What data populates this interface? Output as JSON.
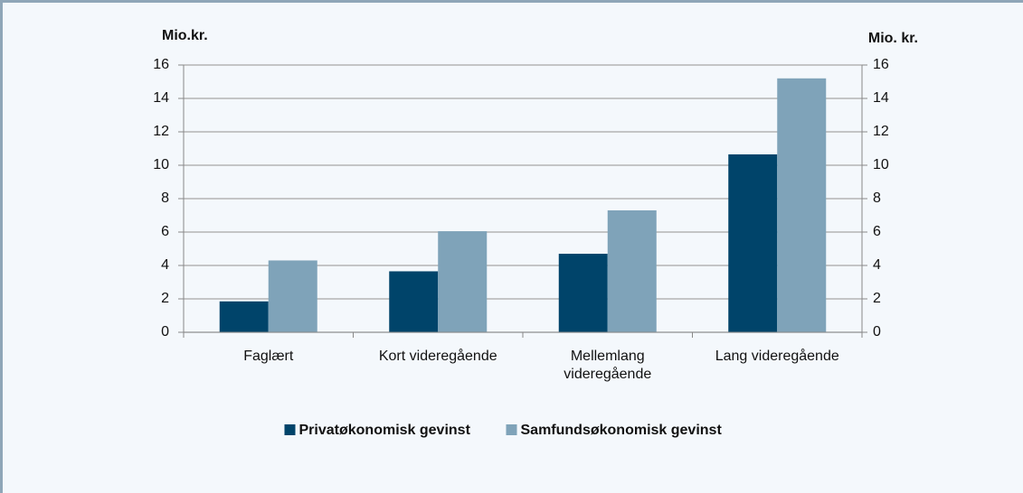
{
  "chart_data": {
    "type": "bar",
    "y_label": "Mio.kr.",
    "y2_label": "Mio. kr.",
    "categories": [
      "Faglært",
      "Kort videregående",
      "Mellemlang videregående",
      "Lang videregående"
    ],
    "series": [
      {
        "name": "Privatøkonomisk gevinst",
        "color": "#00446a",
        "values": [
          1.85,
          3.65,
          4.7,
          10.65
        ]
      },
      {
        "name": "Samfundsøkonomisk gevinst",
        "color": "#7fa3b9",
        "values": [
          4.3,
          6.05,
          7.3,
          15.2
        ]
      }
    ],
    "ylim": [
      0,
      16
    ],
    "yticks": [
      0,
      2,
      4,
      6,
      8,
      10,
      12,
      14,
      16
    ],
    "y2lim": [
      0,
      16
    ],
    "y2ticks": [
      0,
      2,
      4,
      6,
      8,
      10,
      12,
      14,
      16
    ],
    "grid": true,
    "legend": "bottom"
  }
}
